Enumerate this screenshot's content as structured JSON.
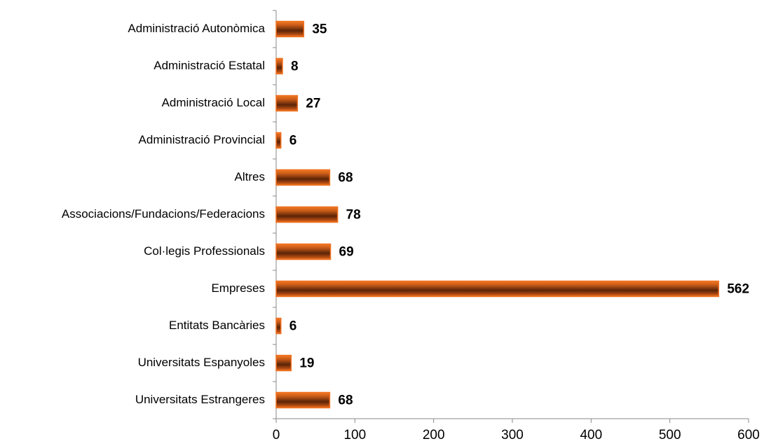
{
  "chart_data": {
    "type": "bar",
    "orientation": "horizontal",
    "categories": [
      "Administració Autonòmica",
      "Administració Estatal",
      "Administració Local",
      "Administració Provincial",
      "Altres",
      "Associacions/Fundacions/Federacions",
      "Col·legis Professionals",
      "Empreses",
      "Entitats Bancàries",
      "Universitats Espanyoles",
      "Universitats Estrangeres"
    ],
    "values": [
      35,
      8,
      27,
      6,
      68,
      78,
      69,
      562,
      6,
      19,
      68
    ],
    "color": "#f07020",
    "xlim": [
      0,
      600
    ],
    "xticks": [
      0,
      100,
      200,
      300,
      400,
      500,
      600
    ],
    "grid": false
  }
}
